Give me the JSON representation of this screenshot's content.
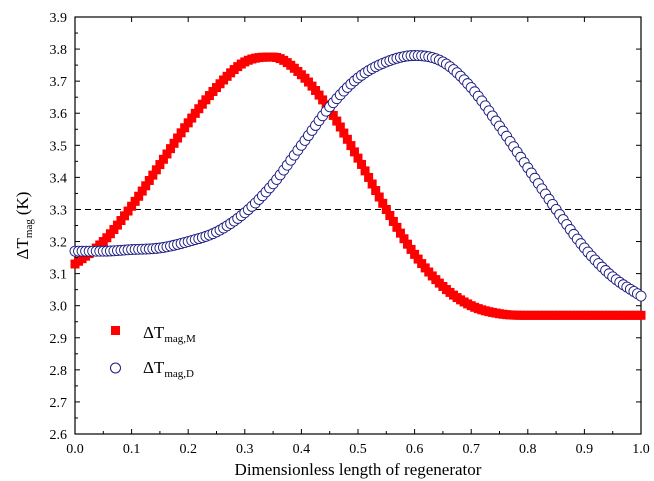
{
  "chart_data": {
    "type": "scatter",
    "title": "",
    "xlabel": "Dimensionless length of regenerator",
    "ylabel": {
      "main": "ΔT",
      "sub": "mag",
      "unit": "(K)"
    },
    "xlim": [
      0.0,
      1.0
    ],
    "ylim": [
      2.6,
      3.9
    ],
    "xticks": [
      "0.0",
      "0.1",
      "0.2",
      "0.3",
      "0.4",
      "0.5",
      "0.6",
      "0.7",
      "0.8",
      "0.9",
      "1.0"
    ],
    "yticks": [
      "2.6",
      "2.7",
      "2.8",
      "2.9",
      "3.0",
      "3.1",
      "3.2",
      "3.3",
      "3.4",
      "3.5",
      "3.6",
      "3.7",
      "3.8",
      "3.9"
    ],
    "grid": false,
    "legend_position": "bottom-left",
    "reference_line": {
      "y": 3.3,
      "style": "dashed",
      "color": "#000000"
    },
    "series": [
      {
        "name_main": "ΔT",
        "name_sub": "mag,M",
        "marker": "filled-square",
        "color": "#ff0000",
        "x": [
          0.0,
          0.05,
          0.1,
          0.15,
          0.2,
          0.25,
          0.3,
          0.35,
          0.4,
          0.45,
          0.5,
          0.55,
          0.6,
          0.65,
          0.7,
          0.75,
          0.8,
          0.85,
          0.9,
          0.95,
          1.0
        ],
        "y": [
          3.13,
          3.2,
          3.31,
          3.44,
          3.57,
          3.68,
          3.76,
          3.775,
          3.72,
          3.61,
          3.46,
          3.3,
          3.16,
          3.06,
          3.0,
          2.975,
          2.97,
          2.97,
          2.97,
          2.97,
          2.97
        ]
      },
      {
        "name_main": "ΔT",
        "name_sub": "mag,D",
        "marker": "open-circle",
        "color": "#1a1a80",
        "x": [
          0.0,
          0.05,
          0.1,
          0.15,
          0.2,
          0.25,
          0.3,
          0.35,
          0.4,
          0.45,
          0.5,
          0.55,
          0.6,
          0.65,
          0.7,
          0.75,
          0.8,
          0.85,
          0.9,
          0.95,
          1.0
        ],
        "y": [
          3.17,
          3.17,
          3.175,
          3.18,
          3.2,
          3.23,
          3.29,
          3.38,
          3.5,
          3.62,
          3.71,
          3.76,
          3.78,
          3.76,
          3.68,
          3.56,
          3.43,
          3.3,
          3.18,
          3.09,
          3.03
        ]
      }
    ]
  }
}
